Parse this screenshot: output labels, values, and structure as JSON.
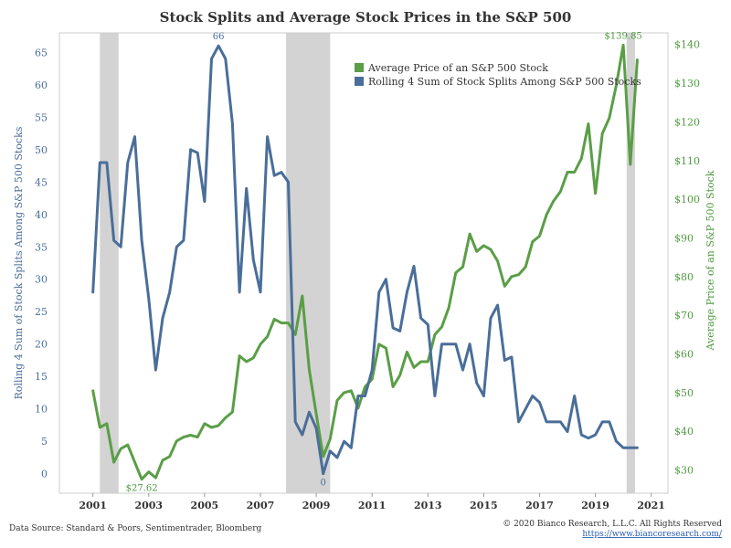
{
  "title": "Stock Splits and Average Stock Prices in the S&P 500",
  "footer": {
    "source": "Data Source: Standard & Poors, Sentimentrader, Bloomberg",
    "copyright": "© 2020 Bianco Research, L.L.C. All Rights Reserved",
    "link": "https://www.biancoresearch.com/"
  },
  "colors": {
    "splits": "#4a6e99",
    "price": "#5a9e46",
    "recession": "#d3d3d3"
  },
  "chart_data": {
    "type": "line",
    "title": "Stock Splits and Average Stock Prices in the S&P 500",
    "grid": false,
    "legend_position": "top-right",
    "x_range": [
      1999.8,
      2021.6
    ],
    "x_ticks": [
      2001,
      2003,
      2005,
      2007,
      2009,
      2011,
      2013,
      2015,
      2017,
      2019,
      2021
    ],
    "x_tick_labels": [
      "2001",
      "2003",
      "2005",
      "2007",
      "2009",
      "2011",
      "2013",
      "2015",
      "2017",
      "2019",
      "2021"
    ],
    "y_left": {
      "label": "Rolling 4 Sum of Stock Splits Among S&P 500 Stocks",
      "range": [
        -3,
        68
      ],
      "ticks": [
        0,
        5,
        10,
        15,
        20,
        25,
        30,
        35,
        40,
        45,
        50,
        55,
        60,
        65
      ],
      "tick_labels": [
        "0",
        "5",
        "10",
        "15",
        "20",
        "25",
        "30",
        "35",
        "40",
        "45",
        "50",
        "55",
        "60",
        "65"
      ]
    },
    "y_right": {
      "label": "Average Price of an S&P 500 Stock",
      "range": [
        24,
        143
      ],
      "ticks": [
        30,
        40,
        50,
        60,
        70,
        80,
        90,
        100,
        110,
        120,
        130,
        140
      ],
      "tick_labels": [
        "$30",
        "$40",
        "$50",
        "$60",
        "$70",
        "$80",
        "$90",
        "$100",
        "$110",
        "$120",
        "$130",
        "$140"
      ]
    },
    "shaded_periods": [
      {
        "start": 2001.25,
        "end": 2001.92
      },
      {
        "start": 2007.92,
        "end": 2009.5
      },
      {
        "start": 2020.12,
        "end": 2020.42
      }
    ],
    "series": [
      {
        "name": "Average Price of an S&P 500 Stock",
        "axis": "right",
        "color": "#5a9e46",
        "x": [
          2001.0,
          2001.25,
          2001.5,
          2001.75,
          2002.0,
          2002.25,
          2002.5,
          2002.75,
          2003.0,
          2003.25,
          2003.5,
          2003.75,
          2004.0,
          2004.25,
          2004.5,
          2004.75,
          2005.0,
          2005.25,
          2005.5,
          2005.75,
          2006.0,
          2006.25,
          2006.5,
          2006.75,
          2007.0,
          2007.25,
          2007.5,
          2007.75,
          2008.0,
          2008.25,
          2008.5,
          2008.75,
          2009.0,
          2009.25,
          2009.5,
          2009.75,
          2010.0,
          2010.25,
          2010.5,
          2010.75,
          2011.0,
          2011.25,
          2011.5,
          2011.75,
          2012.0,
          2012.25,
          2012.5,
          2012.75,
          2013.0,
          2013.25,
          2013.5,
          2013.75,
          2014.0,
          2014.25,
          2014.5,
          2014.75,
          2015.0,
          2015.25,
          2015.5,
          2015.75,
          2016.0,
          2016.25,
          2016.5,
          2016.75,
          2017.0,
          2017.25,
          2017.5,
          2017.75,
          2018.0,
          2018.25,
          2018.5,
          2018.75,
          2019.0,
          2019.25,
          2019.5,
          2019.75,
          2020.0,
          2020.25,
          2020.5
        ],
        "values": [
          50.5,
          41,
          42,
          32,
          35.5,
          36.5,
          32,
          27.62,
          29.5,
          28,
          32.5,
          33.5,
          37.5,
          38.5,
          39,
          38.5,
          42,
          41,
          41.5,
          43.5,
          45,
          59.5,
          58,
          59,
          62.5,
          64.5,
          69,
          68,
          68,
          65,
          75,
          56,
          44.5,
          33.5,
          38,
          48,
          50,
          50.5,
          46,
          51.5,
          53.5,
          62.5,
          61.5,
          51.5,
          54.5,
          60.5,
          56.5,
          58,
          58,
          65,
          67,
          72,
          81,
          82.5,
          91,
          86.5,
          88,
          87,
          84,
          77.5,
          80,
          80.5,
          82.5,
          89,
          90.5,
          96,
          99.5,
          102,
          107,
          107,
          110.5,
          119.5,
          101.5,
          117,
          121,
          129.5,
          139.85,
          109,
          136
        ]
      },
      {
        "name": "Rolling 4 Sum of Stock Splits Among S&P 500 Stocks",
        "axis": "left",
        "color": "#4a6e99",
        "x": [
          2001.0,
          2001.25,
          2001.5,
          2001.75,
          2002.0,
          2002.25,
          2002.5,
          2002.75,
          2003.0,
          2003.25,
          2003.5,
          2003.75,
          2004.0,
          2004.25,
          2004.5,
          2004.75,
          2005.0,
          2005.25,
          2005.5,
          2005.75,
          2006.0,
          2006.25,
          2006.5,
          2006.75,
          2007.0,
          2007.25,
          2007.5,
          2007.75,
          2008.0,
          2008.25,
          2008.5,
          2008.75,
          2009.0,
          2009.25,
          2009.5,
          2009.75,
          2010.0,
          2010.25,
          2010.5,
          2010.75,
          2011.0,
          2011.25,
          2011.5,
          2011.75,
          2012.0,
          2012.25,
          2012.5,
          2012.75,
          2013.0,
          2013.25,
          2013.5,
          2013.75,
          2014.0,
          2014.25,
          2014.5,
          2014.75,
          2015.0,
          2015.25,
          2015.5,
          2015.75,
          2016.0,
          2016.25,
          2016.5,
          2016.75,
          2017.0,
          2017.25,
          2017.5,
          2017.75,
          2018.0,
          2018.25,
          2018.5,
          2018.75,
          2019.0,
          2019.25,
          2019.5,
          2019.75,
          2020.0,
          2020.25,
          2020.5
        ],
        "values": [
          28,
          48,
          48,
          36,
          35,
          48,
          52,
          36,
          27,
          16,
          24,
          28,
          35,
          36,
          50,
          49.5,
          42,
          64,
          66,
          64,
          54,
          28,
          44,
          33,
          28,
          52,
          46,
          46.5,
          45,
          8,
          6,
          9.5,
          7,
          0,
          3.5,
          2.5,
          5,
          4,
          12,
          12,
          16,
          28,
          30,
          22.5,
          22,
          28,
          32,
          24,
          23,
          12,
          20,
          20,
          20,
          16,
          20,
          14,
          12,
          24,
          26,
          17.5,
          18,
          8,
          10,
          12,
          11,
          8,
          8,
          8,
          6.5,
          12,
          6,
          5.5,
          6,
          8,
          8,
          5,
          4,
          4,
          4
        ]
      }
    ],
    "annotations": [
      {
        "text": "66",
        "series": 1,
        "x": 2005.5,
        "y": 66
      },
      {
        "text": "$27.62",
        "series": 0,
        "x": 2002.75,
        "y": 27.62
      },
      {
        "text": "0",
        "series": 1,
        "x": 2009.25,
        "y": 0
      },
      {
        "text": "$139.85",
        "series": 0,
        "x": 2020.0,
        "y": 139.85
      }
    ]
  }
}
